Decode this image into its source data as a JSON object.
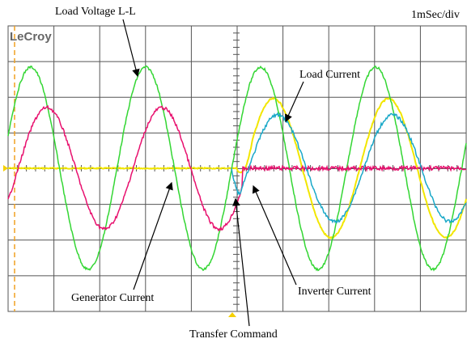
{
  "header": {
    "brand": "LeCroy",
    "scale": "1mSec/div"
  },
  "annotations": {
    "load_voltage": "Load Voltage L-L",
    "load_current": "Load Current",
    "generator_current": "Generator Current",
    "inverter_current": "Inverter Current",
    "transfer_command": "Transfer Command"
  }
}
